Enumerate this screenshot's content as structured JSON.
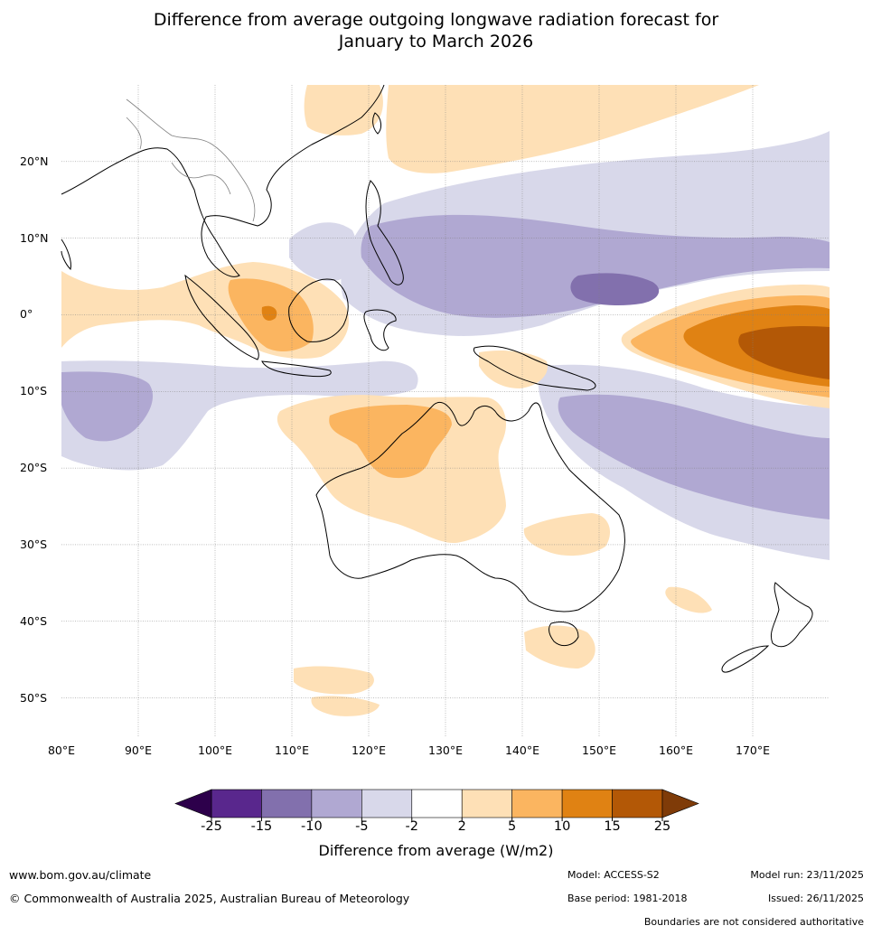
{
  "title": {
    "line1": "Difference from average outgoing longwave radiation forecast for",
    "line2": "January to March 2026"
  },
  "axes": {
    "lat_labels": [
      "20°N",
      "10°N",
      "0°",
      "10°S",
      "20°S",
      "30°S",
      "40°S",
      "50°S"
    ],
    "lat_values": [
      20,
      10,
      0,
      -10,
      -20,
      -30,
      -40,
      -50
    ],
    "lon_labels": [
      "80°E",
      "90°E",
      "100°E",
      "110°E",
      "120°E",
      "130°E",
      "140°E",
      "150°E",
      "160°E",
      "170°E"
    ],
    "lon_values": [
      80,
      90,
      100,
      110,
      120,
      130,
      140,
      150,
      160,
      170
    ],
    "lon_range": [
      80,
      180
    ],
    "lat_range": [
      -55,
      30
    ]
  },
  "colorbar": {
    "ticks": [
      "-25",
      "-15",
      "-10",
      "-5",
      "-2",
      "2",
      "5",
      "10",
      "15",
      "25"
    ],
    "colors": [
      "#59278d",
      "#8270ad",
      "#b0a8d2",
      "#d8d8ea",
      "#ffffff",
      "#fee0b6",
      "#fbb560",
      "#e08213",
      "#b35806"
    ],
    "under_color": "#2d004b",
    "over_color": "#7f3b08",
    "title": "Difference from average (W/m2)"
  },
  "footer": {
    "url": "www.bom.gov.au/climate",
    "copyright": "© Commonwealth of Australia 2025, Australian Bureau of Meteorology",
    "model": "Model: ACCESS-S2",
    "base_period": "Base period: 1981-2018",
    "model_run": "Model run: 23/11/2025",
    "issued": "Issued: 26/11/2025",
    "disclaimer": "Boundaries are not considered authoritative"
  }
}
